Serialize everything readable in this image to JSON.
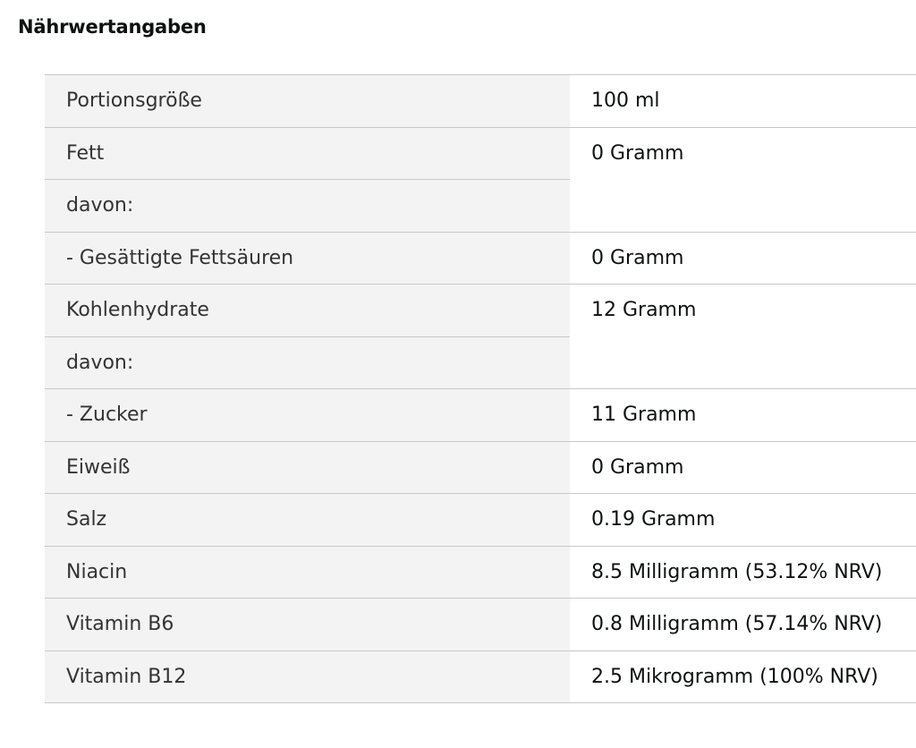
{
  "title": "Nährwertangaben",
  "rows": [
    {
      "label": "Portionsgröße",
      "value": "100 ml"
    },
    {
      "label": "Fett",
      "value": "0 Gramm"
    },
    {
      "label": "davon:"
    },
    {
      "label": "- Gesättigte Fettsäuren",
      "value": "0 Gramm"
    },
    {
      "label": "Kohlenhydrate",
      "value": "12 Gramm"
    },
    {
      "label": "davon:"
    },
    {
      "label": "- Zucker",
      "value": "11 Gramm"
    },
    {
      "label": "Eiweiß",
      "value": "0 Gramm"
    },
    {
      "label": "Salz",
      "value": "0.19 Gramm"
    },
    {
      "label": "Niacin",
      "value": "8.5 Milligramm (53.12% NRV)"
    },
    {
      "label": "Vitamin B6",
      "value": "0.8 Milligramm (57.14% NRV)"
    },
    {
      "label": "Vitamin B12",
      "value": "2.5 Mikrogramm (100% NRV)"
    }
  ]
}
